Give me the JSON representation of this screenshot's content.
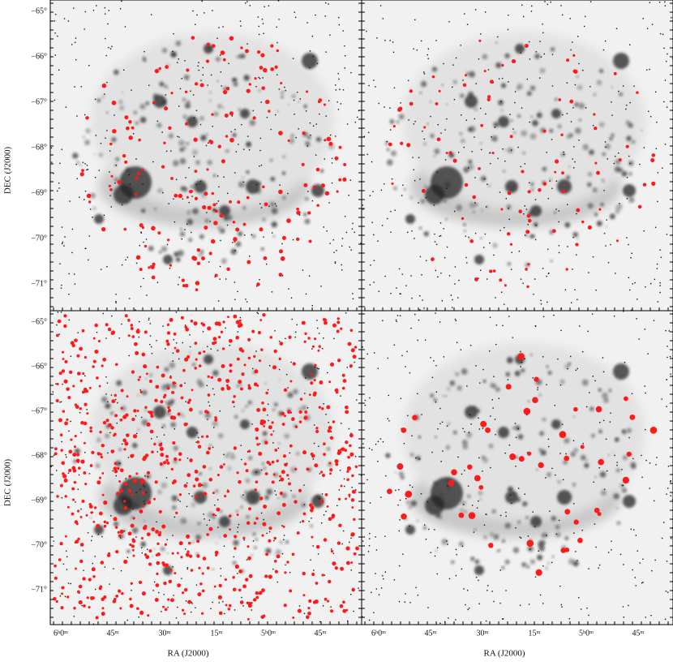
{
  "figure": {
    "y_axis_title": "DEC (J2000)",
    "x_axis_title": "RA (J2000)",
    "y_tick_labels": [
      "−65°",
      "−66°",
      "−67°",
      "−68°",
      "−69°",
      "−70°",
      "−71°"
    ],
    "x_tick_labels": [
      "6ʰ0ᵐ",
      "45ᵐ",
      "30ᵐ",
      "15ᵐ",
      "5ʰ0ᵐ",
      "45ᵐ"
    ]
  }
}
